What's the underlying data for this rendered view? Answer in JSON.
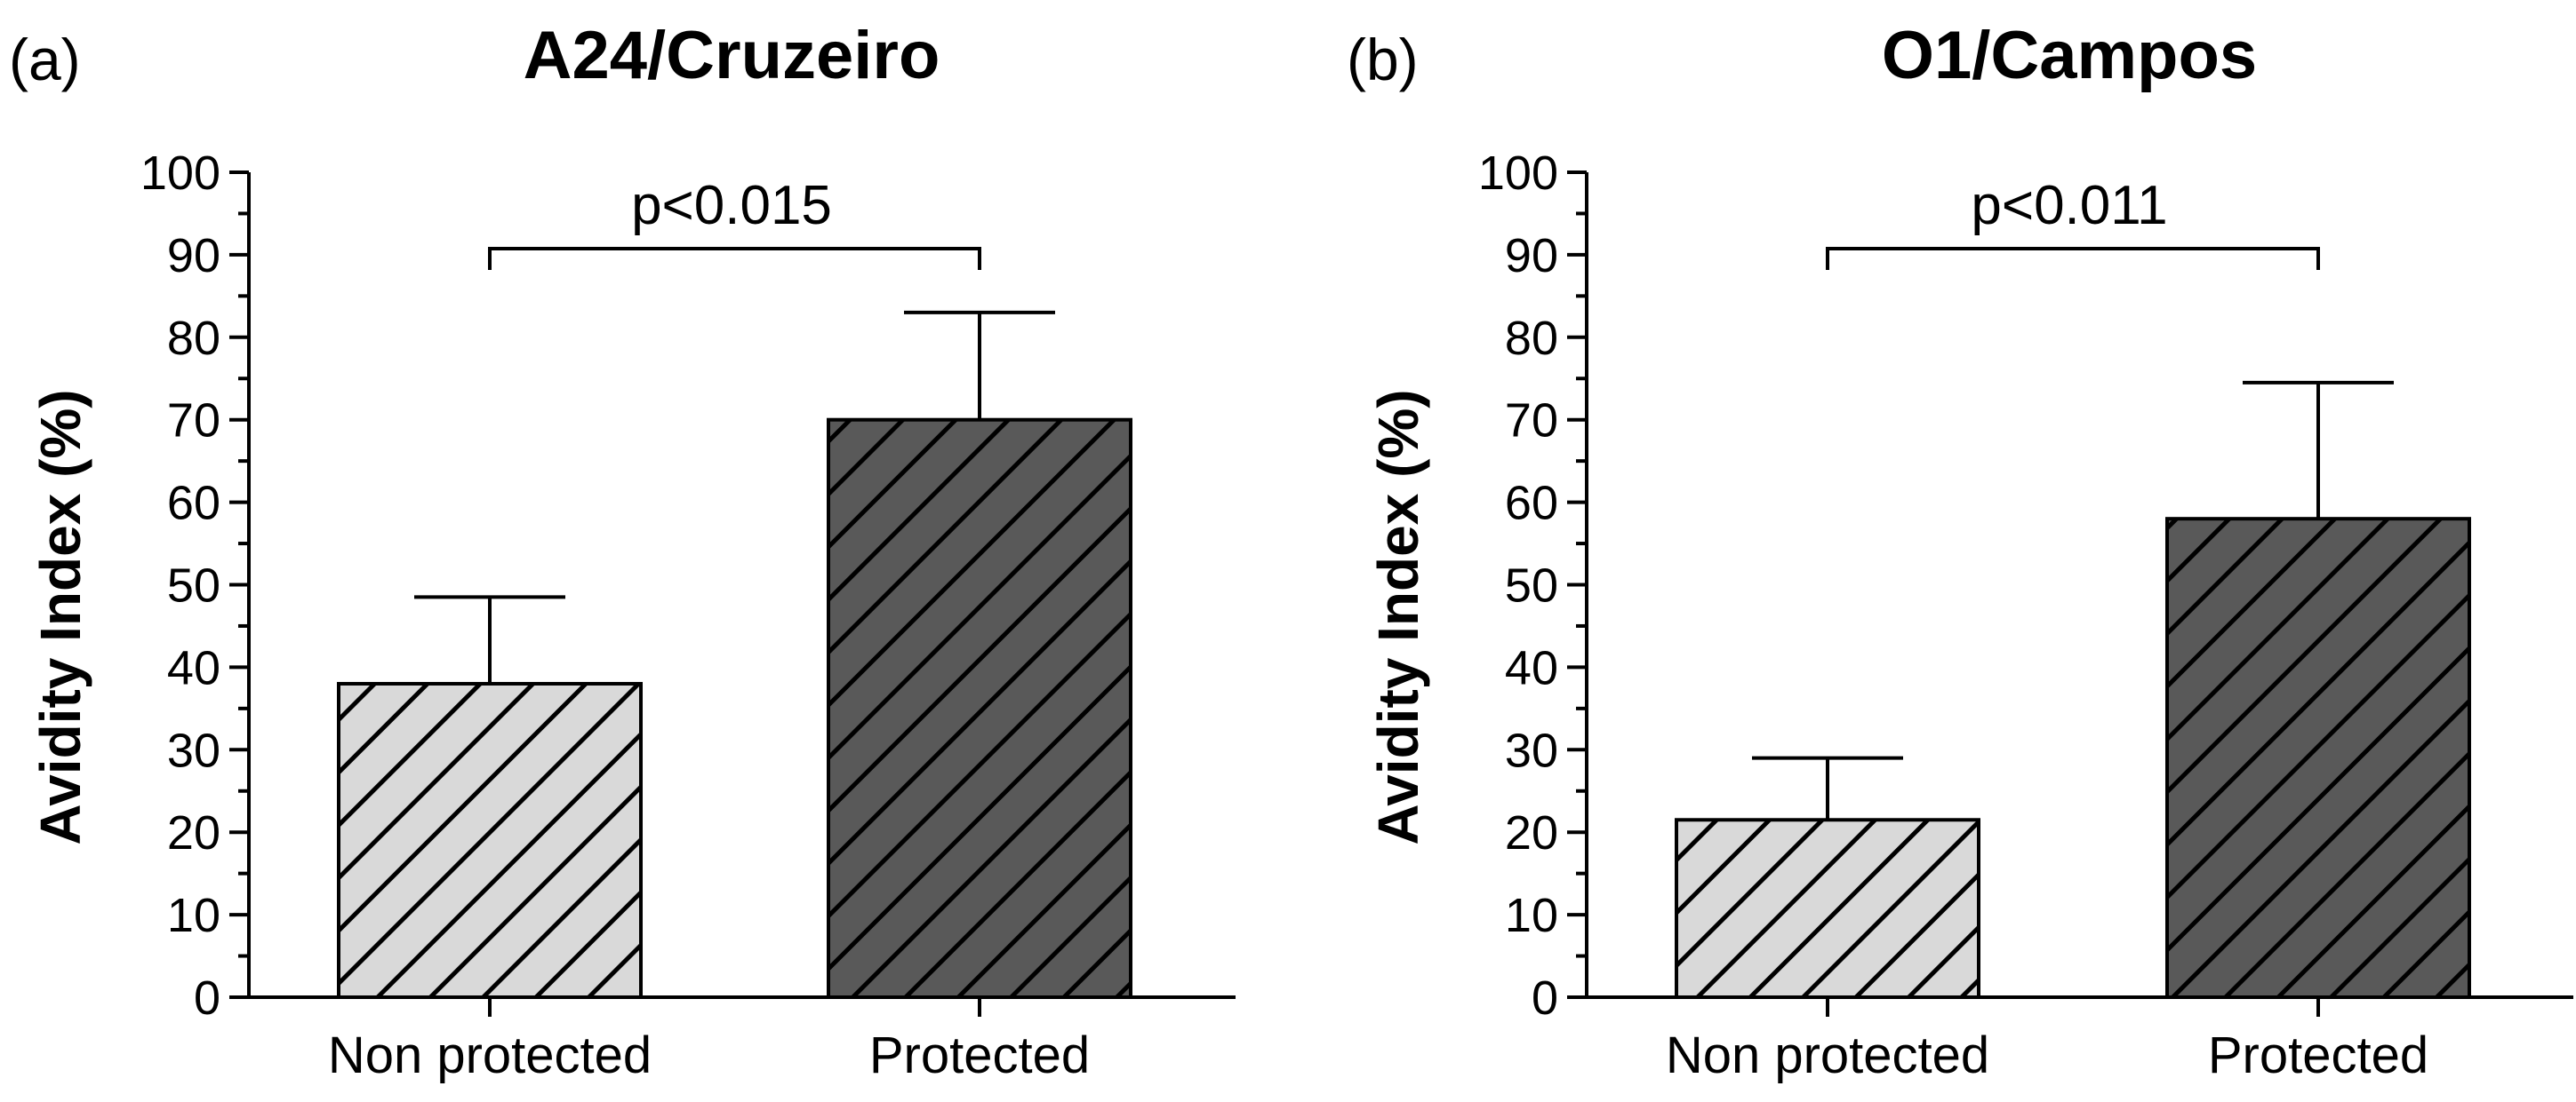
{
  "chart_data": [
    {
      "type": "bar",
      "panel_label": "(a)",
      "title": "A24/Cruzeiro",
      "ylabel": "Avidity Index (%)",
      "xlabel": "",
      "ylim": [
        0,
        100
      ],
      "yticks": [
        "0",
        "10",
        "20",
        "30",
        "40",
        "50",
        "60",
        "70",
        "80",
        "90",
        "100"
      ],
      "categories": [
        "Non protected",
        "Protected"
      ],
      "values": [
        38,
        70
      ],
      "errors": [
        10.5,
        13
      ],
      "bar_colors": [
        "#d9d9d9",
        "#595959"
      ],
      "significance": "p<0.015"
    },
    {
      "type": "bar",
      "panel_label": "(b)",
      "title": "O1/Campos",
      "ylabel": "Avidity Index (%)",
      "xlabel": "",
      "ylim": [
        0,
        100
      ],
      "yticks": [
        "0",
        "10",
        "20",
        "30",
        "40",
        "50",
        "60",
        "70",
        "80",
        "90",
        "100"
      ],
      "categories": [
        "Non protected",
        "Protected"
      ],
      "values": [
        21.5,
        58
      ],
      "errors": [
        7.5,
        16.5
      ],
      "bar_colors": [
        "#d9d9d9",
        "#595959"
      ],
      "significance": "p<0.011"
    }
  ]
}
